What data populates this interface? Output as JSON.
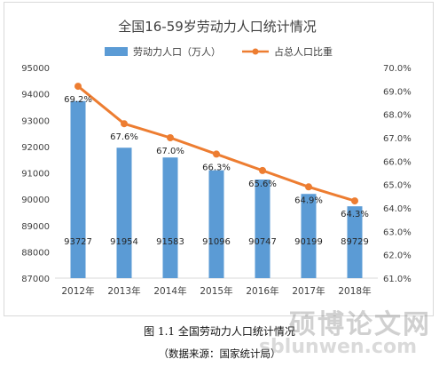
{
  "chart_data": {
    "type": "bar",
    "title": "全国16-59岁劳动力人口统计情况",
    "categories": [
      "2012年",
      "2013年",
      "2014年",
      "2015年",
      "2016年",
      "2017年",
      "2018年"
    ],
    "series": [
      {
        "name": "劳动力人口（万人）",
        "type": "bar",
        "axis": "left",
        "values": [
          93727,
          91954,
          91583,
          91096,
          90747,
          90199,
          89729
        ],
        "data_labels": [
          "93727",
          "91954",
          "91583",
          "91096",
          "90747",
          "90199",
          "89729"
        ],
        "color": "#5b9bd5"
      },
      {
        "name": "占总人口比重",
        "type": "line",
        "axis": "right",
        "values": [
          69.2,
          67.6,
          67.0,
          66.3,
          65.6,
          64.9,
          64.3
        ],
        "data_labels": [
          "69.2%",
          "67.6%",
          "67.0%",
          "66.3%",
          "65.6%",
          "64.9%",
          "64.3%"
        ],
        "color": "#ed7d31"
      }
    ],
    "y_left": {
      "ylim": [
        87000,
        95000
      ],
      "ticks": [
        "87000",
        "88000",
        "89000",
        "90000",
        "91000",
        "92000",
        "93000",
        "94000",
        "95000"
      ]
    },
    "y_right": {
      "ylim": [
        61.0,
        70.0
      ],
      "ticks": [
        "61.0%",
        "62.0%",
        "63.0%",
        "64.0%",
        "65.0%",
        "66.0%",
        "67.0%",
        "68.0%",
        "69.0%",
        "70.0%"
      ]
    },
    "xlabel": "",
    "ylabel": "",
    "grid": false,
    "legend": "top"
  },
  "caption": {
    "title": "图 1.1 全国劳动力人口统计情况",
    "source": "（数据来源：国家统计局）"
  },
  "watermark": {
    "text_cn": "硕博论文网",
    "text_url": "sblunwen.com"
  }
}
